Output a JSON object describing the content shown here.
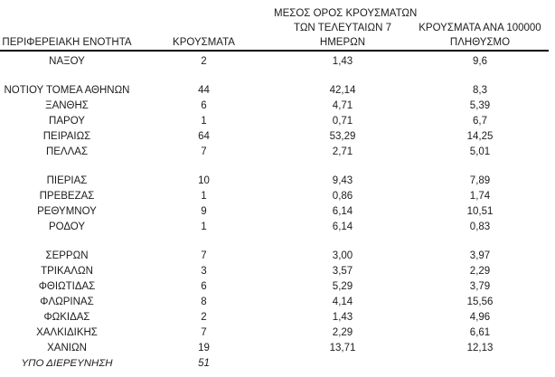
{
  "page": {
    "background": "#ffffff",
    "text_color": "#1c1c1c",
    "rule_color": "#000000"
  },
  "table": {
    "columns": [
      {
        "id": "regional_unit",
        "label_lines": [
          "ΠΕΡΙΦΕΡΕΙΑΚΗ ΕΝΟΤΗΤΑ"
        ]
      },
      {
        "id": "cases",
        "label_lines": [
          "ΚΡΟΥΣΜΑΤΑ"
        ]
      },
      {
        "id": "avg_7day",
        "label_lines": [
          "ΜΕΣΟΣ ΟΡΟΣ ΚΡΟΥΣΜΑΤΩΝ",
          "ΤΩΝ ΤΕΛΕΥΤΑΙΩΝ 7",
          "ΗΜΕΡΩΝ"
        ]
      },
      {
        "id": "per_100k",
        "label_lines": [
          "ΚΡΟΥΣΜΑΤΑ ΑΝΑ 100000",
          "ΠΛΗΘΥΣΜΟ"
        ]
      }
    ],
    "groups": [
      {
        "rows": [
          {
            "regional_unit": "ΝΑΞΟΥ",
            "cases": "2",
            "avg_7day": "1,43",
            "per_100k": "9,6"
          }
        ]
      },
      {
        "rows": [
          {
            "regional_unit": "ΝΟΤΙΟΥ ΤΟΜΕΑ ΑΘΗΝΩΝ",
            "cases": "44",
            "avg_7day": "42,14",
            "per_100k": "8,3"
          },
          {
            "regional_unit": "ΞΑΝΘΗΣ",
            "cases": "6",
            "avg_7day": "4,71",
            "per_100k": "5,39"
          },
          {
            "regional_unit": "ΠΑΡΟΥ",
            "cases": "1",
            "avg_7day": "0,71",
            "per_100k": "6,7"
          },
          {
            "regional_unit": "ΠΕΙΡΑΙΩΣ",
            "cases": "64",
            "avg_7day": "53,29",
            "per_100k": "14,25"
          },
          {
            "regional_unit": "ΠΕΛΛΑΣ",
            "cases": "7",
            "avg_7day": "2,71",
            "per_100k": "5,01"
          }
        ]
      },
      {
        "rows": [
          {
            "regional_unit": "ΠΙΕΡΙΑΣ",
            "cases": "10",
            "avg_7day": "9,43",
            "per_100k": "7,89"
          },
          {
            "regional_unit": "ΠΡΕΒΕΖΑΣ",
            "cases": "1",
            "avg_7day": "0,86",
            "per_100k": "1,74"
          },
          {
            "regional_unit": "ΡΕΘΥΜΝΟΥ",
            "cases": "9",
            "avg_7day": "6,14",
            "per_100k": "10,51"
          },
          {
            "regional_unit": "ΡΟΔΟΥ",
            "cases": "1",
            "avg_7day": "6,14",
            "per_100k": "0,83"
          }
        ]
      },
      {
        "rows": [
          {
            "regional_unit": "ΣΕΡΡΩΝ",
            "cases": "7",
            "avg_7day": "3,00",
            "per_100k": "3,97"
          },
          {
            "regional_unit": "ΤΡΙΚΑΛΩΝ",
            "cases": "3",
            "avg_7day": "3,57",
            "per_100k": "2,29"
          },
          {
            "regional_unit": "ΦΘΙΩΤΙΔΑΣ",
            "cases": "6",
            "avg_7day": "5,29",
            "per_100k": "3,79"
          },
          {
            "regional_unit": "ΦΛΩΡΙΝΑΣ",
            "cases": "8",
            "avg_7day": "4,14",
            "per_100k": "15,56"
          },
          {
            "regional_unit": "ΦΩΚΙΔΑΣ",
            "cases": "2",
            "avg_7day": "1,43",
            "per_100k": "4,96"
          },
          {
            "regional_unit": "ΧΑΛΚΙΔΙΚΗΣ",
            "cases": "7",
            "avg_7day": "2,29",
            "per_100k": "6,61"
          },
          {
            "regional_unit": "ΧΑΝΙΩΝ",
            "cases": "19",
            "avg_7day": "13,71",
            "per_100k": "12,13"
          },
          {
            "regional_unit": "ΥΠΟ ΔΙΕΡΕΥΝΗΣΗ",
            "cases": "51",
            "avg_7day": "",
            "per_100k": "",
            "italic": true
          }
        ]
      }
    ]
  }
}
